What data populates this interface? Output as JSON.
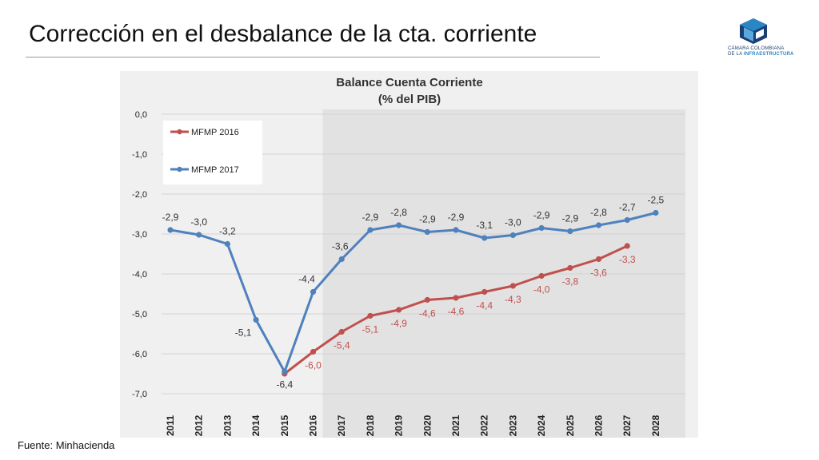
{
  "page": {
    "title": "Corrección en el desbalance de la cta. corriente",
    "source": "Fuente: Minhacienda"
  },
  "logo": {
    "line1": "CÁMARA COLOMBIANA",
    "line2_prefix": "DE LA ",
    "line2_emphasis": "INFRAESTRUCTURA",
    "colors": {
      "dark": "#1b3f73",
      "light": "#2a86c5"
    }
  },
  "chart_data": {
    "type": "line",
    "title": "Balance Cuenta Corriente",
    "subtitle": "(% del PIB)",
    "xlabel": "",
    "ylabel": "",
    "ylim": [
      -7.0,
      0.0
    ],
    "yticks": [
      0.0,
      -1.0,
      -2.0,
      -3.0,
      -4.0,
      -5.0,
      -6.0,
      -7.0
    ],
    "ytick_labels": [
      "0,0",
      "-1,0",
      "-2,0",
      "-3,0",
      "-4,0",
      "-5,0",
      "-6,0",
      "-7,0"
    ],
    "categories": [
      "2011",
      "2012",
      "2013",
      "2014",
      "2015",
      "2016",
      "2017",
      "2018",
      "2019",
      "2020",
      "2021",
      "2022",
      "2023",
      "2024",
      "2025",
      "2026",
      "2027",
      "2028"
    ],
    "grid": true,
    "legend_position": "top-left",
    "shaded_from_category": "2016",
    "series": [
      {
        "name": "MFMP 2016",
        "color": "#c0504d",
        "values": [
          null,
          null,
          null,
          null,
          -6.5,
          -5.95,
          -5.45,
          -5.05,
          -4.9,
          -4.65,
          -4.6,
          -4.45,
          -4.3,
          -4.05,
          -3.85,
          -3.63,
          -3.3,
          null
        ],
        "labels": [
          null,
          null,
          null,
          null,
          null,
          "-6,0",
          "-5,4",
          "-5,1",
          "-4,9",
          "-4,6",
          "-4,6",
          "-4,4",
          "-4,3",
          "-4,0",
          "-3,8",
          "-3,6",
          "-3,3",
          null
        ]
      },
      {
        "name": "MFMP 2017",
        "color": "#4f81bd",
        "values": [
          -2.9,
          -3.02,
          -3.25,
          -5.15,
          -6.45,
          -4.45,
          -3.63,
          -2.9,
          -2.78,
          -2.95,
          -2.9,
          -3.1,
          -3.03,
          -2.85,
          -2.93,
          -2.78,
          -2.65,
          -2.47
        ],
        "labels": [
          "-2,9",
          "-3,0",
          "-3,2",
          "-5,1",
          "-6,4",
          "-4,4",
          "-3,6",
          "-2,9",
          "-2,8",
          "-2,9",
          "-2,9",
          "-3,1",
          "-3,0",
          "-2,9",
          "-2,9",
          "-2,8",
          "-2,7",
          "-2,5"
        ]
      }
    ]
  }
}
